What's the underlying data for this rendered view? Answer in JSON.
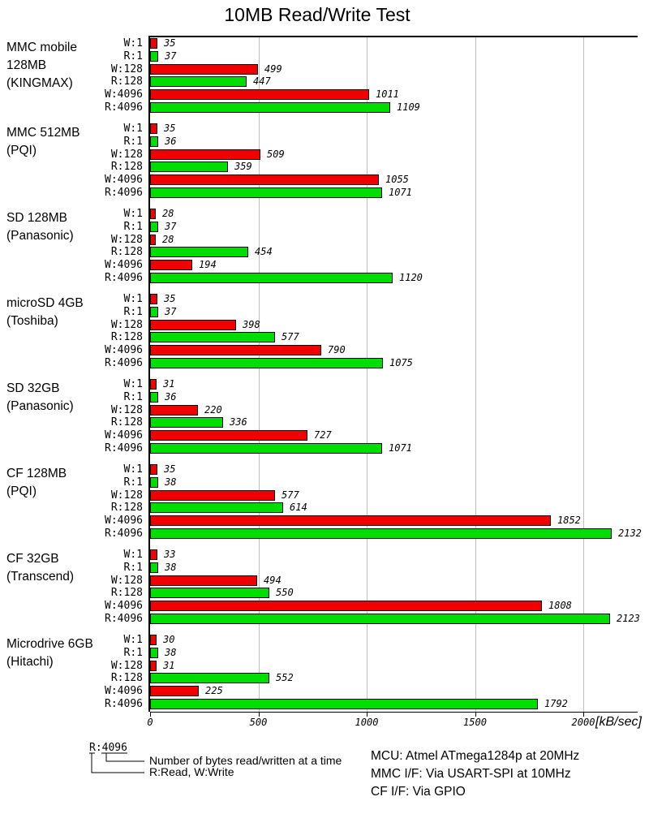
{
  "title": "10MB Read/Write Test",
  "chart_data": {
    "type": "bar",
    "orientation": "horizontal",
    "xlabel": "[kB/sec]",
    "x_ticks": [
      "0",
      "500",
      "1000",
      "1500",
      "2000"
    ],
    "x_tick_values": [
      0,
      500,
      1000,
      1500,
      2000
    ],
    "x_max": 2250,
    "grid": true,
    "row_labels": [
      "W:1",
      "R:1",
      "W:128",
      "R:128",
      "W:4096",
      "R:4096"
    ],
    "row_kinds": [
      "write",
      "read",
      "write",
      "read",
      "write",
      "read"
    ],
    "colors": {
      "write": "#f10000",
      "read": "#00dd00",
      "grid": "#bfbfbf",
      "axis": "#000000"
    },
    "groups": [
      {
        "label_lines": [
          "MMC mobile",
          "128MB",
          "(KINGMAX)"
        ],
        "values": [
          35,
          37,
          499,
          447,
          1011,
          1109
        ]
      },
      {
        "label_lines": [
          "MMC 512MB",
          "(PQI)"
        ],
        "values": [
          35,
          36,
          509,
          359,
          1055,
          1071
        ]
      },
      {
        "label_lines": [
          "SD 128MB",
          "(Panasonic)"
        ],
        "values": [
          28,
          37,
          28,
          454,
          194,
          1120
        ]
      },
      {
        "label_lines": [
          "microSD 4GB",
          "(Toshiba)"
        ],
        "values": [
          35,
          37,
          398,
          577,
          790,
          1075
        ]
      },
      {
        "label_lines": [
          "SD 32GB",
          "(Panasonic)"
        ],
        "values": [
          31,
          36,
          220,
          336,
          727,
          1071
        ]
      },
      {
        "label_lines": [
          "CF 128MB",
          "(PQI)"
        ],
        "values": [
          35,
          38,
          577,
          614,
          1852,
          2132
        ]
      },
      {
        "label_lines": [
          "CF 32GB",
          "(Transcend)"
        ],
        "values": [
          33,
          38,
          494,
          550,
          1808,
          2123
        ]
      },
      {
        "label_lines": [
          "Microdrive 6GB",
          "(Hitachi)"
        ],
        "values": [
          30,
          38,
          31,
          552,
          225,
          1792
        ]
      }
    ]
  },
  "legend": {
    "example_label": "R:4096",
    "pointer1": "Number of bytes read/written at a time",
    "pointer2": "R:Read, W:Write"
  },
  "info": {
    "lines": [
      "MCU: Atmel ATmega1284p at 20MHz",
      "MMC I/F: Via USART-SPI at 10MHz",
      "CF I/F: Via GPIO"
    ]
  }
}
